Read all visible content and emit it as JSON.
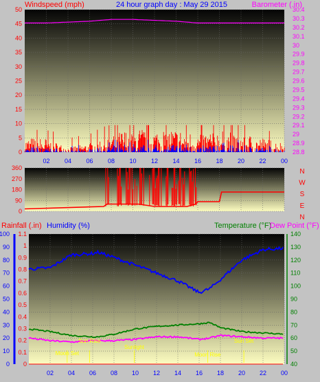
{
  "title": "24 hour graph day : May 29 2015",
  "colors": {
    "background": "#c3c3c3",
    "grid": "#666666",
    "wind": "#ff0000",
    "gust": "#0000ff",
    "barometer": "#ff00ff",
    "direction": "#ff0000",
    "rain": "#ff0000",
    "humidity": "#0000ff",
    "temperature": "#008000",
    "dewpoint": "#ff00ff",
    "annotation": "#ffff00",
    "plot_top": "#050505",
    "plot_bottom": "#fdfdc0"
  },
  "panels": {
    "wind": {
      "left_label": "Windspeed (mph)",
      "right_label": "Barometer (.in)",
      "left_ticks": [
        "0",
        "5",
        "10",
        "15",
        "20",
        "25",
        "30",
        "35",
        "40",
        "45",
        "50"
      ],
      "right_ticks": [
        "28.8",
        "28.9",
        "29",
        "29.1",
        "29.2",
        "29.3",
        "29.4",
        "29.5",
        "29.6",
        "29.7",
        "29.8",
        "29.9",
        "30",
        "30.1",
        "30.2",
        "30.3",
        "30.4"
      ]
    },
    "direction": {
      "left_ticks": [
        "0",
        "90",
        "180",
        "270",
        "360"
      ],
      "compass": [
        "N",
        "W",
        "S",
        "E",
        "N"
      ]
    },
    "weather": {
      "rain_label": "Rainfall (.in)",
      "humidity_label": "Humidity (%)",
      "temp_label": "Temperature (°F)",
      "dew_label": "Dew Point (°F)",
      "humidity_ticks": [
        "0",
        "10",
        "20",
        "30",
        "40",
        "50",
        "60",
        "70",
        "80",
        "90",
        "100"
      ],
      "rain_ticks": [
        "0",
        "0.1",
        "0.2",
        "0.3",
        "0.4",
        "0.5",
        "0.6",
        "0.7",
        "0.8",
        "0.9",
        "1",
        "1.1"
      ],
      "temp_ticks": [
        "40",
        "50",
        "60",
        "70",
        "80",
        "90",
        "100",
        "110",
        "120",
        "130",
        "140"
      ],
      "annotations": [
        {
          "text": "Sun Rise",
          "hour": 5.7
        },
        {
          "text": "Moon Set",
          "hour": 3.6
        },
        {
          "text": "Sunlight",
          "hour": 9.9
        },
        {
          "text": "Moon Rise",
          "hour": 16.8
        },
        {
          "text": "Sun Set",
          "hour": 20.2
        }
      ]
    },
    "x_ticks": [
      "02",
      "04",
      "06",
      "08",
      "10",
      "12",
      "14",
      "16",
      "18",
      "20",
      "22",
      "00"
    ]
  },
  "chart_data": [
    {
      "type": "line",
      "title": "24 hour graph day : May 29 2015",
      "x": [
        0,
        2,
        4,
        6,
        8,
        10,
        12,
        14,
        16,
        18,
        20,
        22,
        24
      ],
      "xticklabels": [
        "02",
        "04",
        "06",
        "08",
        "10",
        "12",
        "14",
        "16",
        "18",
        "20",
        "22",
        "00"
      ],
      "series": [
        {
          "name": "Windspeed (mph)",
          "axis": "left",
          "values": [
            3,
            3,
            1,
            2,
            4,
            5,
            5,
            5,
            4,
            5,
            4,
            3,
            2
          ]
        },
        {
          "name": "Barometer (.in)",
          "axis": "right",
          "values": [
            30.25,
            30.25,
            30.26,
            30.27,
            30.29,
            30.29,
            30.28,
            30.27,
            30.25,
            30.25,
            30.25,
            30.25,
            30.25
          ]
        }
      ],
      "ylim": [
        0,
        50
      ],
      "y2lim": [
        28.8,
        30.4
      ]
    },
    {
      "type": "line",
      "x": [
        0,
        7.3,
        7.6,
        10.5,
        12,
        15,
        15.8,
        16,
        18,
        18.2,
        24
      ],
      "series": [
        {
          "name": "Wind direction",
          "values": [
            20,
            40,
            60,
            60,
            40,
            40,
            60,
            80,
            80,
            160,
            160
          ]
        }
      ],
      "ylim": [
        0,
        360
      ]
    },
    {
      "type": "line",
      "x": [
        0,
        2,
        4,
        6,
        6.5,
        8,
        10,
        12,
        14,
        16,
        17,
        18,
        20,
        22,
        24
      ],
      "series": [
        {
          "name": "Humidity (%)",
          "axis": "left",
          "values": [
            73,
            74,
            84,
            85,
            86,
            82,
            76,
            70,
            64,
            55,
            58,
            65,
            80,
            88,
            89
          ]
        },
        {
          "name": "Rainfall (.in)",
          "axis": "rain",
          "values": [
            0,
            0,
            0,
            0,
            0,
            0,
            0,
            0,
            0,
            0,
            0,
            0,
            0,
            0,
            0
          ]
        },
        {
          "name": "Temperature (°F)",
          "axis": "right",
          "values": [
            67,
            65,
            62,
            61,
            61,
            63,
            67,
            69,
            70,
            71,
            72,
            68,
            65,
            64,
            63
          ]
        },
        {
          "name": "Dew Point (°F)",
          "axis": "right",
          "values": [
            60,
            58,
            57,
            58,
            58,
            58,
            59,
            61,
            61,
            59,
            60,
            62,
            61,
            60,
            60
          ]
        }
      ],
      "ylim": [
        0,
        100
      ],
      "y2lim": [
        40,
        140
      ],
      "rainlim": [
        0,
        1.1
      ]
    }
  ]
}
